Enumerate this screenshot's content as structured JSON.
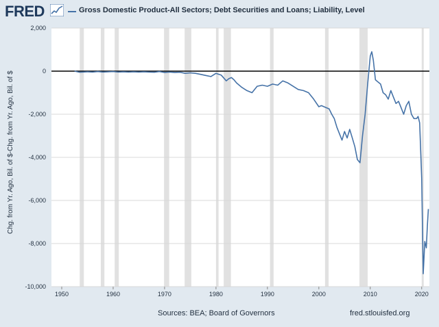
{
  "header": {
    "logo_text": "FRED",
    "logo_icon": "chart-line-icon",
    "legend_label": "Gross Domestic Product-All Sectors; Debt Securities and Loans; Liability, Level"
  },
  "footer": {
    "sources": "Sources: BEA; Board of Governors",
    "site": "fred.stlouisfed.org"
  },
  "colors": {
    "background": "#e1e9f0",
    "plot_bg": "#ffffff",
    "series": "#4572a7",
    "recession": "#e1e1e1",
    "zero_line": "#000000",
    "grid": "#d8d8d8",
    "logo": "#1f3a5c"
  },
  "chart_data": {
    "type": "line",
    "title": "",
    "xlabel": "",
    "ylabel": "Chg. from Yr. Ago, Bil. of $-Chg. from Yr. Ago, Bil. of $",
    "xlim": [
      1948,
      2021.5
    ],
    "ylim": [
      -10000,
      2000
    ],
    "x_ticks": [
      1950,
      1960,
      1970,
      1980,
      1990,
      2000,
      2010,
      2020
    ],
    "y_ticks": [
      2000,
      0,
      -2000,
      -4000,
      -6000,
      -8000,
      -10000
    ],
    "y_tick_labels": [
      "2,000",
      "0",
      "-2,000",
      "-4,000",
      "-6,000",
      "-8,000",
      "-10,000"
    ],
    "grid": "horizontal",
    "recessions": [
      [
        1953.5,
        1954.3
      ],
      [
        1957.6,
        1958.3
      ],
      [
        1960.3,
        1961.1
      ],
      [
        1969.9,
        1970.9
      ],
      [
        1973.9,
        1975.2
      ],
      [
        1980.0,
        1980.5
      ],
      [
        1981.5,
        1982.9
      ],
      [
        1990.5,
        1991.2
      ],
      [
        2001.2,
        2001.9
      ],
      [
        2007.9,
        2009.5
      ],
      [
        2020.0,
        2020.4
      ]
    ],
    "series": [
      {
        "name": "Gross Domestic Product-All Sectors; Debt Securities and Loans; Liability, Level",
        "x": [
          1952.5,
          1953.5,
          1955,
          1956,
          1957,
          1958,
          1959,
          1960,
          1961,
          1962,
          1963,
          1964,
          1965,
          1966,
          1967,
          1968,
          1969,
          1970,
          1971,
          1972,
          1973,
          1974,
          1975,
          1976,
          1977,
          1978,
          1979,
          1980,
          1981,
          1982,
          1982.5,
          1983,
          1983.5,
          1984,
          1985,
          1986,
          1987,
          1988,
          1989,
          1990,
          1991,
          1992,
          1993,
          1994,
          1995,
          1996,
          1997,
          1998,
          1999,
          2000,
          2000.5,
          2001,
          2001.5,
          2002,
          2002.5,
          2003,
          2003.5,
          2004,
          2004.5,
          2005,
          2005.5,
          2006,
          2006.5,
          2007,
          2007.5,
          2008,
          2008.5,
          2009,
          2009.5,
          2010,
          2010.3,
          2010.6,
          2011,
          2011.5,
          2012,
          2012.5,
          2013,
          2013.5,
          2014,
          2014.5,
          2015,
          2015.5,
          2016,
          2016.5,
          2017,
          2017.5,
          2018,
          2018.5,
          2019,
          2019.3,
          2019.6,
          2020,
          2020.3,
          2020.6,
          2020.9,
          2021.1,
          2021.3
        ],
        "y": [
          0,
          -50,
          -30,
          -40,
          -20,
          -40,
          -30,
          -20,
          -40,
          -30,
          -40,
          -30,
          -40,
          -30,
          -40,
          -50,
          -20,
          -60,
          -40,
          -60,
          -50,
          -100,
          -80,
          -100,
          -150,
          -200,
          -250,
          -100,
          -180,
          -450,
          -350,
          -300,
          -400,
          -550,
          -750,
          -900,
          -1000,
          -700,
          -650,
          -700,
          -600,
          -650,
          -450,
          -550,
          -700,
          -850,
          -900,
          -1000,
          -1300,
          -1650,
          -1600,
          -1650,
          -1700,
          -1750,
          -2000,
          -2200,
          -2600,
          -2900,
          -3200,
          -2800,
          -3100,
          -2700,
          -3100,
          -3500,
          -4100,
          -4250,
          -3000,
          -2000,
          -600,
          700,
          900,
          500,
          -400,
          -500,
          -600,
          -1000,
          -1100,
          -1300,
          -900,
          -1200,
          -1500,
          -1400,
          -1700,
          -2000,
          -1600,
          -1400,
          -2000,
          -2200,
          -2200,
          -2100,
          -2400,
          -5000,
          -9400,
          -7900,
          -8200,
          -7200,
          -6400
        ]
      }
    ]
  }
}
